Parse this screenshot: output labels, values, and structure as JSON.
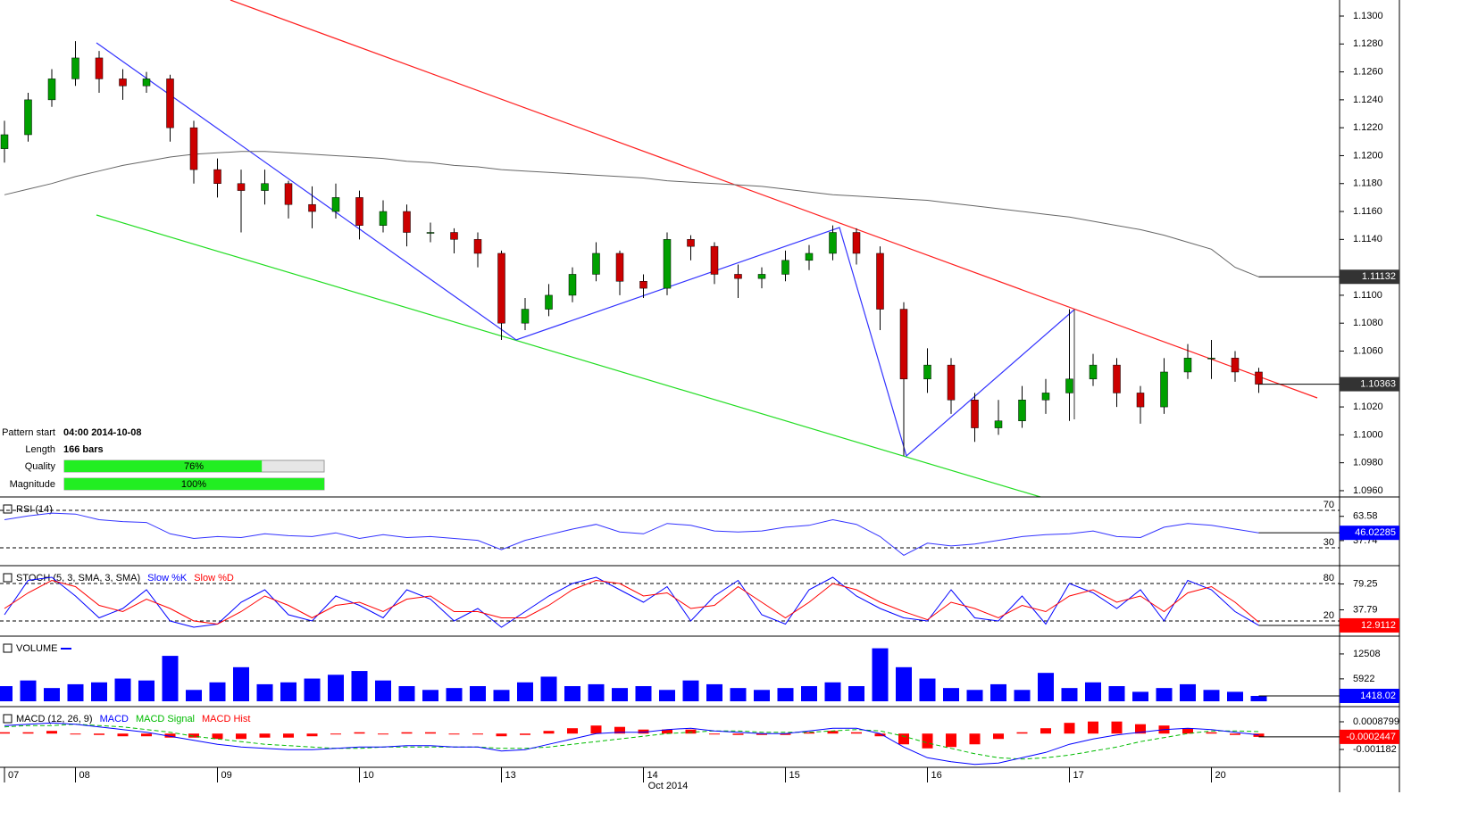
{
  "chart_data": [
    {
      "type": "candlestick",
      "categories": [
        "07",
        null,
        null,
        "08",
        null,
        null,
        null,
        null,
        null,
        "09",
        null,
        null,
        null,
        null,
        null,
        "10",
        null,
        null,
        null,
        null,
        null,
        "13",
        null,
        null,
        null,
        null,
        null,
        "14",
        null,
        null,
        null,
        null,
        null,
        "15",
        null,
        null,
        null,
        null,
        null,
        "16",
        null,
        null,
        null,
        null,
        null,
        "17",
        null,
        null,
        null,
        null,
        null,
        "20",
        null,
        null
      ],
      "xlabel": "Oct 2014",
      "open": [
        1.1205,
        1.1215,
        1.124,
        1.1255,
        1.127,
        1.1255,
        1.125,
        1.1255,
        1.122,
        1.119,
        1.118,
        1.1175,
        1.118,
        1.1165,
        1.116,
        1.117,
        1.115,
        1.116,
        1.1145,
        1.1145,
        1.114,
        1.113,
        1.108,
        1.109,
        1.11,
        1.1115,
        1.113,
        1.111,
        1.1105,
        1.114,
        1.1135,
        1.1115,
        1.1112,
        1.1115,
        1.1125,
        1.113,
        1.1145,
        1.113,
        1.109,
        1.104,
        1.105,
        1.1025,
        1.1005,
        1.101,
        1.1025,
        1.103,
        1.104,
        1.105,
        1.103,
        1.102,
        1.1045,
        1.1055,
        1.1055,
        1.1045
      ],
      "high": [
        1.1225,
        1.1245,
        1.1262,
        1.1282,
        1.1275,
        1.1262,
        1.126,
        1.1258,
        1.1225,
        1.1198,
        1.119,
        1.119,
        1.1182,
        1.1178,
        1.118,
        1.1175,
        1.1168,
        1.1165,
        1.1152,
        1.1148,
        1.1145,
        1.1132,
        1.1098,
        1.1108,
        1.112,
        1.1138,
        1.1132,
        1.1115,
        1.1145,
        1.1143,
        1.1138,
        1.1122,
        1.112,
        1.1132,
        1.1136,
        1.115,
        1.1148,
        1.1135,
        1.1095,
        1.1062,
        1.1055,
        1.103,
        1.1025,
        1.1035,
        1.104,
        1.109,
        1.1058,
        1.1055,
        1.1035,
        1.1055,
        1.1065,
        1.1068,
        1.106,
        1.1048
      ],
      "low": [
        1.1195,
        1.121,
        1.1235,
        1.125,
        1.1245,
        1.124,
        1.1245,
        1.121,
        1.118,
        1.117,
        1.1145,
        1.1165,
        1.1155,
        1.1148,
        1.1155,
        1.114,
        1.1145,
        1.1135,
        1.1138,
        1.113,
        1.112,
        1.1068,
        1.1075,
        1.1085,
        1.1095,
        1.111,
        1.11,
        1.1098,
        1.11,
        1.1125,
        1.1108,
        1.1098,
        1.1105,
        1.111,
        1.1118,
        1.1125,
        1.1122,
        1.1075,
        1.0985,
        1.103,
        1.1015,
        1.0995,
        1.1,
        1.1005,
        1.1015,
        1.101,
        1.1035,
        1.102,
        1.1008,
        1.1015,
        1.104,
        1.104,
        1.1038,
        1.103
      ],
      "close": [
        1.1215,
        1.124,
        1.1255,
        1.127,
        1.1255,
        1.125,
        1.1255,
        1.122,
        1.119,
        1.118,
        1.1175,
        1.118,
        1.1165,
        1.116,
        1.117,
        1.115,
        1.116,
        1.1145,
        1.1145,
        1.114,
        1.113,
        1.108,
        1.109,
        1.11,
        1.1115,
        1.113,
        1.111,
        1.1105,
        1.114,
        1.1135,
        1.1115,
        1.1112,
        1.1115,
        1.1125,
        1.113,
        1.1145,
        1.113,
        1.109,
        1.104,
        1.105,
        1.1025,
        1.1005,
        1.101,
        1.1025,
        1.103,
        1.104,
        1.105,
        1.103,
        1.102,
        1.1045,
        1.1055,
        1.1055,
        1.1045,
        1.10363
      ],
      "up_color": "#00a000",
      "down_color": "#cc0000",
      "ma": {
        "color": "#666666",
        "values": [
          1.1172,
          1.1176,
          1.118,
          1.1185,
          1.1189,
          1.1193,
          1.1196,
          1.1199,
          1.1201,
          1.1202,
          1.1203,
          1.1203,
          1.1202,
          1.1201,
          1.12,
          1.1199,
          1.1198,
          1.1196,
          1.1195,
          1.1193,
          1.1192,
          1.119,
          1.1189,
          1.1188,
          1.1187,
          1.1186,
          1.1185,
          1.1184,
          1.1182,
          1.1181,
          1.118,
          1.1179,
          1.1178,
          1.1176,
          1.1174,
          1.1172,
          1.1171,
          1.117,
          1.1169,
          1.1168,
          1.1166,
          1.1164,
          1.1162,
          1.116,
          1.1158,
          1.1156,
          1.1153,
          1.115,
          1.1147,
          1.1143,
          1.1138,
          1.1133,
          1.112,
          1.11132
        ]
      },
      "ylim": [
        1.09555,
        1.13115
      ],
      "yticks": [
        {
          "value": 1.096,
          "label": "1.0960"
        },
        {
          "value": 1.098,
          "label": "1.0980"
        },
        {
          "value": 1.1,
          "label": "1.1000"
        },
        {
          "value": 1.102,
          "label": "1.1020"
        },
        {
          "value": 1.106,
          "label": "1.1060"
        },
        {
          "value": 1.108,
          "label": "1.1080"
        },
        {
          "value": 1.11,
          "label": "1.1100"
        },
        {
          "value": 1.114,
          "label": "1.1140"
        },
        {
          "value": 1.116,
          "label": "1.1160"
        },
        {
          "value": 1.118,
          "label": "1.1180"
        },
        {
          "value": 1.12,
          "label": "1.1200"
        },
        {
          "value": 1.122,
          "label": "1.1220"
        },
        {
          "value": 1.124,
          "label": "1.1240"
        },
        {
          "value": 1.126,
          "label": "1.1260"
        },
        {
          "value": 1.128,
          "label": "1.1280"
        },
        {
          "value": 1.13,
          "label": "1.1300"
        }
      ]
    },
    {
      "type": "line",
      "title": "RSI (14)",
      "color": "#3333ff",
      "values": [
        60,
        64,
        67,
        66,
        60,
        58,
        57,
        45,
        40,
        42,
        41,
        45,
        43,
        42,
        46,
        40,
        44,
        41,
        42,
        40,
        38,
        28,
        38,
        44,
        50,
        55,
        47,
        45,
        56,
        54,
        48,
        47,
        48,
        52,
        54,
        60,
        55,
        42,
        22,
        35,
        32,
        34,
        38,
        42,
        44,
        45,
        48,
        42,
        41,
        52,
        56,
        54,
        50,
        46.02285
      ],
      "ylim": [
        12.9,
        81.4
      ],
      "yticks": [
        37.74,
        63.58
      ],
      "levels": [
        30,
        70
      ],
      "last_color": "#0000ff"
    },
    {
      "type": "line",
      "title": "STOCH (5, 3, SMA, 3, SMA)",
      "series": [
        {
          "name": "Slow %K",
          "color": "#0000ff",
          "values": [
            30,
            85,
            90,
            60,
            25,
            40,
            70,
            20,
            10,
            15,
            50,
            70,
            30,
            20,
            60,
            45,
            25,
            70,
            55,
            20,
            40,
            10,
            35,
            60,
            80,
            90,
            70,
            50,
            75,
            20,
            60,
            85,
            30,
            15,
            70,
            90,
            60,
            40,
            25,
            20,
            70,
            25,
            20,
            60,
            15,
            80,
            65,
            40,
            70,
            20,
            85,
            70,
            35,
            12.9112
          ]
        },
        {
          "name": "Slow %D",
          "color": "#ff0000",
          "values": [
            40,
            65,
            85,
            75,
            45,
            35,
            55,
            40,
            20,
            15,
            35,
            60,
            45,
            25,
            45,
            50,
            35,
            55,
            60,
            35,
            35,
            25,
            25,
            45,
            70,
            85,
            80,
            60,
            65,
            40,
            45,
            75,
            50,
            25,
            50,
            80,
            70,
            50,
            35,
            22,
            50,
            40,
            25,
            45,
            35,
            60,
            70,
            50,
            60,
            35,
            65,
            75,
            50,
            18
          ]
        }
      ],
      "ylim": [
        -2.9,
        104.3
      ],
      "yticks": [
        37.79,
        79.25
      ],
      "levels": [
        20,
        80
      ],
      "last_color": "#ff0000"
    },
    {
      "type": "bar",
      "title": "VOLUME",
      "color": "#0000ff",
      "values": [
        4000,
        5500,
        3500,
        4500,
        5000,
        6000,
        5500,
        12000,
        3000,
        5000,
        9000,
        4500,
        5000,
        6000,
        7000,
        8000,
        5500,
        4000,
        3000,
        3500,
        4000,
        3000,
        5000,
        6500,
        4000,
        4500,
        3500,
        4000,
        3000,
        5500,
        4500,
        3500,
        3000,
        3500,
        4000,
        5000,
        4000,
        14000,
        9000,
        6000,
        3500,
        3000,
        4500,
        3000,
        7500,
        3500,
        5000,
        4000,
        2500,
        3500,
        4500,
        3000,
        2500,
        1418.02
      ],
      "ylim": [
        0,
        16500
      ],
      "yticks": [
        5922,
        12508
      ],
      "last_color": "#0000ff"
    },
    {
      "type": "macd",
      "title": "MACD (12, 26, 9)",
      "series": [
        {
          "name": "MACD",
          "color": "#0000ff",
          "values": [
            0.0006,
            0.0007,
            0.0008,
            0.0007,
            0.0005,
            0.0003,
            0.0001,
            -0.0002,
            -0.0005,
            -0.0008,
            -0.001,
            -0.0011,
            -0.0012,
            -0.0012,
            -0.0011,
            -0.001,
            -0.001,
            -0.0009,
            -0.0009,
            -0.001,
            -0.001,
            -0.0013,
            -0.0012,
            -0.0008,
            -0.0004,
            0,
            0.0001,
            0.0001,
            0.0003,
            0.0004,
            0.0002,
            0.0001,
            0,
            0,
            0.0002,
            0.0004,
            0.0004,
            0,
            -0.001,
            -0.0018,
            -0.0021,
            -0.0023,
            -0.0022,
            -0.0018,
            -0.0014,
            -0.0008,
            -0.0004,
            -0.0001,
            0.0001,
            0.0003,
            0.0004,
            0.0003,
            0.0001,
            -0.0001
          ]
        },
        {
          "name": "MACD Signal",
          "color": "#00bb00",
          "values": [
            0.0005,
            0.0006,
            0.0006,
            0.0007,
            0.0006,
            0.0005,
            0.0003,
            0.0001,
            -0.0002,
            -0.0004,
            -0.0006,
            -0.0008,
            -0.0009,
            -0.001,
            -0.0011,
            -0.0011,
            -0.001,
            -0.001,
            -0.001,
            -0.001,
            -0.001,
            -0.0011,
            -0.0011,
            -0.001,
            -0.0008,
            -0.0006,
            -0.0004,
            -0.0002,
            0,
            0.0001,
            0.0002,
            0.0002,
            0.0001,
            0.0001,
            0.0001,
            0.0002,
            0.0003,
            0.0002,
            -0.0002,
            -0.0007,
            -0.0011,
            -0.0015,
            -0.0018,
            -0.0019,
            -0.0018,
            -0.0016,
            -0.0013,
            -0.001,
            -0.0006,
            -0.0003,
            0,
            0.0002,
            0.0002,
            0.0001447
          ]
        },
        {
          "name": "MACD Hist",
          "color": "#ff0000",
          "values": [
            0.0001,
            0.0001,
            0.0002,
            0,
            -0.0001,
            -0.0002,
            -0.0002,
            -0.0003,
            -0.0003,
            -0.0004,
            -0.0004,
            -0.0003,
            -0.0003,
            -0.0002,
            0,
            0.0001,
            0,
            0.0001,
            0.0001,
            0,
            0,
            -0.0002,
            -0.0001,
            0.0002,
            0.0004,
            0.0006,
            0.0005,
            0.0003,
            0.0003,
            0.0003,
            0,
            -0.0001,
            -0.0001,
            -0.0001,
            0.0001,
            0.0002,
            0.0001,
            -0.0002,
            -0.0008,
            -0.0011,
            -0.001,
            -0.0008,
            -0.0004,
            0.0001,
            0.0004,
            0.0008,
            0.0009,
            0.0009,
            0.0007,
            0.0006,
            0.0004,
            0.0001,
            -0.0001,
            -0.0002447
          ]
        }
      ],
      "ylim": [
        -0.00238,
        0.00181
      ],
      "yticks": [
        -0.001182,
        0.0008799
      ],
      "last_color": "#ff0000"
    }
  ],
  "pattern_info": {
    "start": {
      "label": "Pattern start",
      "value": "04:00 2014-10-08"
    },
    "length": {
      "label": "Length",
      "value": "166 bars"
    },
    "quality": {
      "label": "Quality",
      "value": 76,
      "value_label": "76%"
    },
    "magnitude": {
      "label": "Magnitude",
      "value": 100,
      "value_label": "100%"
    }
  }
}
